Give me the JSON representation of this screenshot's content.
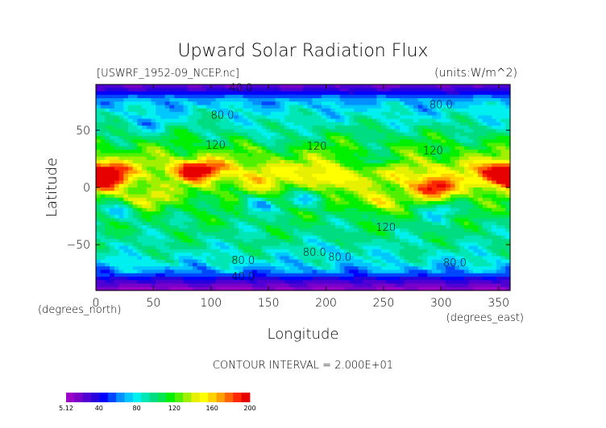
{
  "chart_data": {
    "type": "heatmap",
    "title": "Upward Solar Radiation Flux",
    "source_label": "[USWRF_1952-09_NCEP.nc]",
    "units_label": "(units:W/m^2)",
    "xlabel": "Longitude",
    "ylabel": "Latitude",
    "x_unit_label": "(degrees_east)",
    "y_unit_label": "(degrees_north)",
    "xlim": [
      0,
      360
    ],
    "ylim": [
      -90,
      90
    ],
    "x_ticks": [
      0,
      50,
      100,
      150,
      200,
      250,
      300,
      350
    ],
    "y_ticks": [
      50,
      0,
      -50
    ],
    "contour_interval_text": "CONTOUR INTERVAL = 2.000E+01",
    "contour_labels": [
      {
        "text": "40.0",
        "lon": 126,
        "lat": 87
      },
      {
        "text": "80.0",
        "lon": 110,
        "lat": 63
      },
      {
        "text": "80.0",
        "lon": 300,
        "lat": 72
      },
      {
        "text": "120",
        "lon": 104,
        "lat": 37
      },
      {
        "text": "120",
        "lon": 192,
        "lat": 36
      },
      {
        "text": "120",
        "lon": 293,
        "lat": 32
      },
      {
        "text": "120",
        "lon": 252,
        "lat": -35
      },
      {
        "text": "80.0",
        "lon": 190,
        "lat": -57
      },
      {
        "text": "80.0",
        "lon": 212,
        "lat": -61
      },
      {
        "text": "80.0",
        "lon": 128,
        "lat": -64
      },
      {
        "text": "80.0",
        "lon": 312,
        "lat": -66
      },
      {
        "text": "40.0",
        "lon": 128,
        "lat": -78
      }
    ],
    "colorbar": {
      "min": 5.12,
      "max": 200,
      "tick_labels": [
        "5.12",
        "40",
        "80",
        "120",
        "160",
        "200"
      ],
      "tick_values": [
        5.12,
        40,
        80,
        120,
        160,
        200
      ],
      "colors": [
        "#9b00c8",
        "#7800c8",
        "#5000d2",
        "#2800dc",
        "#0000ff",
        "#0046ff",
        "#0090ff",
        "#00c8ff",
        "#00f0f0",
        "#00e6b4",
        "#00dc82",
        "#00e650",
        "#00f000",
        "#50f000",
        "#a0f000",
        "#e6f000",
        "#ffff00",
        "#ffd200",
        "#ffa000",
        "#ff6400",
        "#ff2800",
        "#e60000"
      ]
    },
    "zonal_profile": [
      {
        "lat": 90,
        "value": 20
      },
      {
        "lat": 84,
        "value": 38
      },
      {
        "lat": 77,
        "value": 66
      },
      {
        "lat": 68,
        "value": 78
      },
      {
        "lat": 58,
        "value": 88
      },
      {
        "lat": 45,
        "value": 104
      },
      {
        "lat": 32,
        "value": 118
      },
      {
        "lat": 18,
        "value": 138
      },
      {
        "lat": 8,
        "value": 132
      },
      {
        "lat": 0,
        "value": 126
      },
      {
        "lat": -8,
        "value": 118
      },
      {
        "lat": -18,
        "value": 110
      },
      {
        "lat": -28,
        "value": 102
      },
      {
        "lat": -40,
        "value": 98
      },
      {
        "lat": -52,
        "value": 92
      },
      {
        "lat": -60,
        "value": 86
      },
      {
        "lat": -67,
        "value": 78
      },
      {
        "lat": -74,
        "value": 62
      },
      {
        "lat": -80,
        "value": 38
      },
      {
        "lat": -86,
        "value": 20
      },
      {
        "lat": -90,
        "value": 10
      }
    ],
    "hot_spots": [
      {
        "lon": 12,
        "lat": 12,
        "value": 190
      },
      {
        "lon": 8,
        "lat": 4,
        "value": 175
      },
      {
        "lon": 95,
        "lat": 16,
        "value": 185
      },
      {
        "lon": 80,
        "lat": 14,
        "value": 175
      },
      {
        "lon": 140,
        "lat": 8,
        "value": 160
      },
      {
        "lon": 200,
        "lat": 8,
        "value": 165
      },
      {
        "lon": 265,
        "lat": 10,
        "value": 150
      },
      {
        "lon": 290,
        "lat": 2,
        "value": 165
      },
      {
        "lon": 300,
        "lat": -3,
        "value": 168
      },
      {
        "lon": 355,
        "lat": 14,
        "value": 190
      },
      {
        "lon": 340,
        "lat": 8,
        "value": 165
      },
      {
        "lon": 245,
        "lat": -12,
        "value": 155
      },
      {
        "lon": 40,
        "lat": -12,
        "value": 150
      }
    ],
    "cool_spots": [
      {
        "lon": 25,
        "lat": -20,
        "value": 72
      },
      {
        "lon": 140,
        "lat": -15,
        "value": 70
      },
      {
        "lon": 185,
        "lat": -10,
        "value": 78
      },
      {
        "lon": 245,
        "lat": 22,
        "value": 92
      },
      {
        "lon": 300,
        "lat": -20,
        "value": 80
      },
      {
        "lon": 210,
        "lat": -55,
        "value": 74
      },
      {
        "lon": 50,
        "lat": 55,
        "value": 72
      },
      {
        "lon": 150,
        "lat": 45,
        "value": 80
      }
    ]
  }
}
